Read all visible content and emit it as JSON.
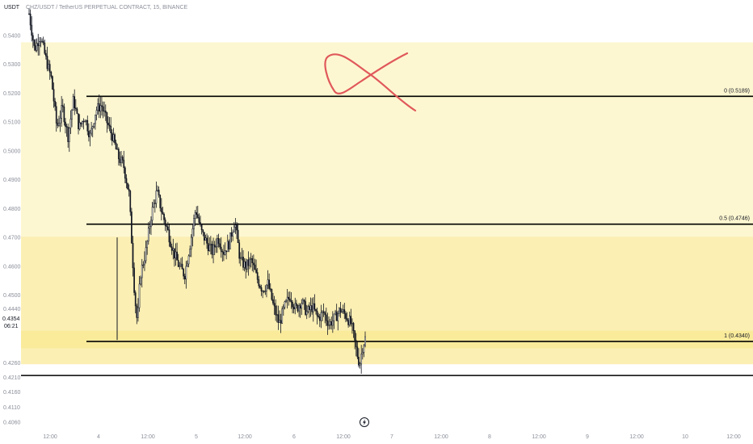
{
  "header": {
    "quote_label": "USDT",
    "symbol_title": "CHZ/USDT / TetherUS PERPETUAL CONTRACT, 15, BINANCE"
  },
  "price_tag": {
    "price": "0.4354",
    "countdown": "06:21"
  },
  "colors": {
    "zone_light": "#fdf7d1",
    "zone_mid": "#fbefb4",
    "zone_strong": "#faeb9b",
    "candle": "#131722",
    "fib_line": "#000000",
    "annotation": "#e0585a",
    "axis_text": "#8a8e99"
  },
  "icons": {
    "replay": "lightning-icon"
  },
  "chart_data": {
    "type": "candlestick",
    "title": "CHZ/USDT / TetherUS PERPETUAL CONTRACT, 15, BINANCE",
    "ylim": [
      0.4035,
      0.5475
    ],
    "y_ticks": [
      "0.5400",
      "0.5300",
      "0.5200",
      "0.5100",
      "0.5000",
      "0.4900",
      "0.4800",
      "0.4700",
      "0.4600",
      "0.4500",
      "0.4440",
      "0.4380",
      "0.4260",
      "0.4210",
      "0.4160",
      "0.4110",
      "0.4060"
    ],
    "x_ticks": [
      "12:00",
      "4",
      "12:00",
      "5",
      "12:00",
      "6",
      "12:00",
      "7",
      "12:00",
      "8",
      "12:00",
      "9",
      "12:00",
      "10",
      "12:00"
    ],
    "fib_levels": [
      {
        "label": "0 (0.5189)",
        "value": 0.5189
      },
      {
        "label": "0.5 (0.4746)",
        "value": 0.4746
      },
      {
        "label": "1 (0.4340)",
        "value": 0.434
      }
    ],
    "extra_line": {
      "value": 0.4222
    },
    "zones": [
      {
        "from": 0.5376,
        "to": 0.4703,
        "tone": "zone_light"
      },
      {
        "from": 0.4703,
        "to": 0.4378,
        "tone": "zone_mid"
      },
      {
        "from": 0.4378,
        "to": 0.4315,
        "tone": "zone_strong"
      },
      {
        "from": 0.4315,
        "to": 0.4261,
        "tone": "zone_mid"
      }
    ],
    "price_series": [
      [
        0,
        0.5475
      ],
      [
        2,
        0.535
      ],
      [
        4,
        0.54
      ],
      [
        6,
        0.532
      ],
      [
        8,
        0.525
      ],
      [
        10,
        0.508
      ],
      [
        12,
        0.515
      ],
      [
        14,
        0.505
      ],
      [
        16,
        0.518
      ],
      [
        18,
        0.508
      ],
      [
        20,
        0.512
      ],
      [
        22,
        0.505
      ],
      [
        24,
        0.514
      ],
      [
        26,
        0.516
      ],
      [
        28,
        0.51
      ],
      [
        30,
        0.505
      ],
      [
        32,
        0.498
      ],
      [
        34,
        0.495
      ],
      [
        36,
        0.485
      ],
      [
        38,
        0.45
      ],
      [
        39,
        0.44
      ],
      [
        40,
        0.457
      ],
      [
        42,
        0.465
      ],
      [
        44,
        0.478
      ],
      [
        46,
        0.486
      ],
      [
        48,
        0.478
      ],
      [
        50,
        0.472
      ],
      [
        52,
        0.465
      ],
      [
        54,
        0.46
      ],
      [
        56,
        0.457
      ],
      [
        58,
        0.468
      ],
      [
        60,
        0.48
      ],
      [
        62,
        0.472
      ],
      [
        64,
        0.468
      ],
      [
        66,
        0.465
      ],
      [
        68,
        0.47
      ],
      [
        70,
        0.465
      ],
      [
        72,
        0.468
      ],
      [
        74,
        0.476
      ],
      [
        76,
        0.462
      ],
      [
        78,
        0.46
      ],
      [
        80,
        0.462
      ],
      [
        82,
        0.456
      ],
      [
        84,
        0.452
      ],
      [
        86,
        0.454
      ],
      [
        88,
        0.446
      ],
      [
        90,
        0.44
      ],
      [
        92,
        0.446
      ],
      [
        94,
        0.45
      ],
      [
        96,
        0.445
      ],
      [
        98,
        0.448
      ],
      [
        100,
        0.444
      ],
      [
        102,
        0.446
      ],
      [
        104,
        0.442
      ],
      [
        106,
        0.444
      ],
      [
        108,
        0.44
      ],
      [
        110,
        0.442
      ],
      [
        112,
        0.445
      ],
      [
        114,
        0.443
      ],
      [
        116,
        0.44
      ],
      [
        118,
        0.43
      ],
      [
        119,
        0.426
      ],
      [
        120,
        0.432
      ],
      [
        121,
        0.435
      ]
    ],
    "annotation": "freehand red strike-through mark over the 0 level"
  }
}
